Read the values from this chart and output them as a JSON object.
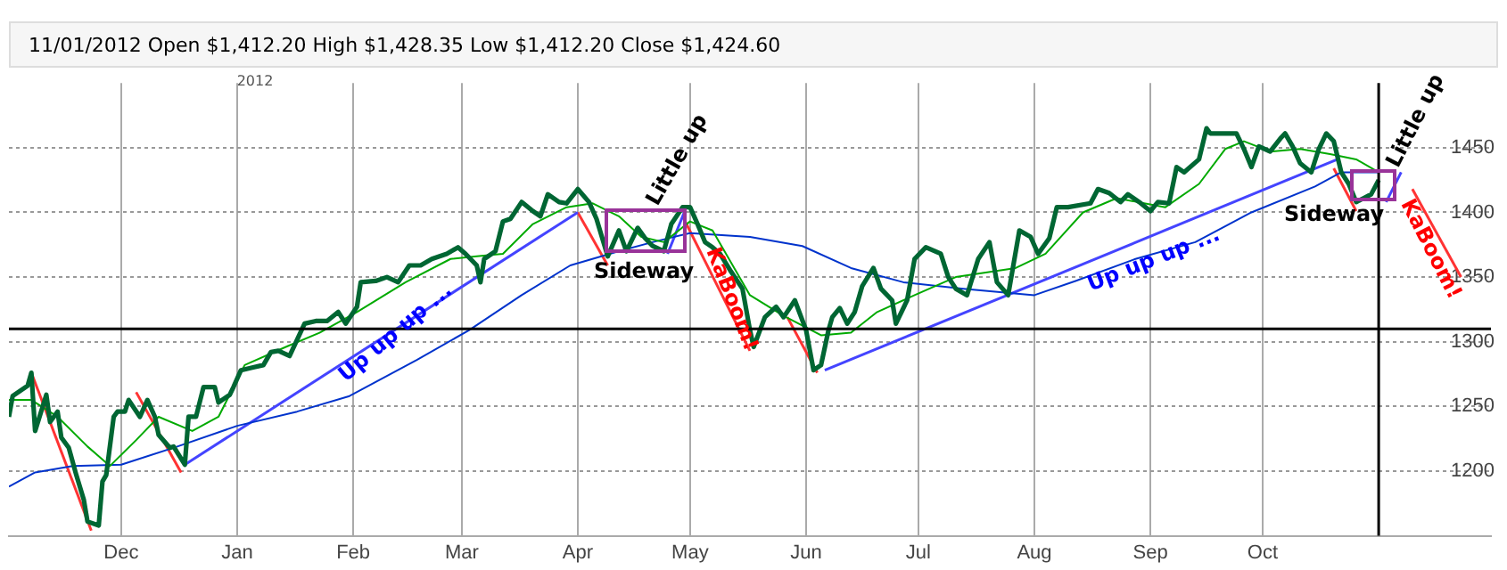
{
  "chart_data": {
    "type": "line",
    "title": "11/01/2012  Open $1,412.20  High $1,428.35  Low $1,412.20  Close $1,424.60",
    "xlim": [
      "2011-11-01",
      "2012-12-01"
    ],
    "xticks": [
      {
        "value": "2011-12-01",
        "label": "Dec"
      },
      {
        "value": "2012-01-01",
        "label": "Jan"
      },
      {
        "value": "2012-02-01",
        "label": "Feb"
      },
      {
        "value": "2012-03-01",
        "label": "Mar"
      },
      {
        "value": "2012-04-01",
        "label": "Apr"
      },
      {
        "value": "2012-05-01",
        "label": "May"
      },
      {
        "value": "2012-06-01",
        "label": "Jun"
      },
      {
        "value": "2012-07-01",
        "label": "Jul"
      },
      {
        "value": "2012-08-01",
        "label": "Aug"
      },
      {
        "value": "2012-09-01",
        "label": "Sep"
      },
      {
        "value": "2012-10-01",
        "label": "Oct"
      }
    ],
    "ylim": [
      1150,
      1500
    ],
    "yticks": [
      1200,
      1250,
      1300,
      1350,
      1400,
      1450
    ],
    "grid": true,
    "legend": false,
    "marker": "none",
    "series": [
      {
        "color": "#006633",
        "x": [
          "2011-11-01",
          "2011-11-02",
          "2011-11-06",
          "2011-11-07",
          "2011-11-08",
          "2011-11-11",
          "2011-11-12",
          "2011-11-14",
          "2011-11-15",
          "2011-11-17",
          "2011-11-19",
          "2011-11-21",
          "2011-11-22",
          "2011-11-25",
          "2011-11-26",
          "2011-11-27",
          "2011-11-29",
          "2011-11-30",
          "2011-12-02",
          "2011-12-03",
          "2011-12-06",
          "2011-12-08",
          "2011-12-10",
          "2011-12-11",
          "2011-12-14",
          "2011-12-15",
          "2011-12-18",
          "2011-12-19",
          "2011-12-21",
          "2011-12-23",
          "2011-12-26",
          "2011-12-27",
          "2011-12-30",
          "2011-12-31",
          "2012-01-02",
          "2012-01-05",
          "2012-01-08",
          "2012-01-10",
          "2012-01-12",
          "2012-01-15",
          "2012-01-19",
          "2012-01-22",
          "2012-01-25",
          "2012-01-28",
          "2012-01-30",
          "2012-02-02",
          "2012-02-03",
          "2012-02-07",
          "2012-02-10",
          "2012-02-13",
          "2012-02-16",
          "2012-02-19",
          "2012-02-22",
          "2012-02-26",
          "2012-02-29",
          "2012-03-02",
          "2012-03-05",
          "2012-03-06",
          "2012-03-07",
          "2012-03-10",
          "2012-03-12",
          "2012-03-14",
          "2012-03-17",
          "2012-03-20",
          "2012-03-22",
          "2012-03-24",
          "2012-03-27",
          "2012-03-29",
          "2012-04-01",
          "2012-04-04",
          "2012-04-06",
          "2012-04-09",
          "2012-04-12",
          "2012-04-14",
          "2012-04-17",
          "2012-04-19",
          "2012-04-21",
          "2012-04-24",
          "2012-04-26",
          "2012-04-29",
          "2012-05-01",
          "2012-05-03",
          "2012-05-05",
          "2012-05-07",
          "2012-05-09",
          "2012-05-12",
          "2012-05-15",
          "2012-05-17",
          "2012-05-18",
          "2012-05-21",
          "2012-05-24",
          "2012-05-26",
          "2012-05-29",
          "2012-06-01",
          "2012-06-03",
          "2012-06-05",
          "2012-06-07",
          "2012-06-08",
          "2012-06-10",
          "2012-06-12",
          "2012-06-14",
          "2012-06-16",
          "2012-06-19",
          "2012-06-21",
          "2012-06-24",
          "2012-06-25",
          "2012-06-28",
          "2012-06-30",
          "2012-07-03",
          "2012-07-07",
          "2012-07-09",
          "2012-07-11",
          "2012-07-14",
          "2012-07-17",
          "2012-07-20",
          "2012-07-22",
          "2012-07-25",
          "2012-07-28",
          "2012-07-31",
          "2012-08-02",
          "2012-08-05",
          "2012-08-07",
          "2012-08-10",
          "2012-08-16",
          "2012-08-18",
          "2012-08-21",
          "2012-08-24",
          "2012-08-26",
          "2012-08-29",
          "2012-09-01",
          "2012-09-03",
          "2012-09-06",
          "2012-09-08",
          "2012-09-10",
          "2012-09-14",
          "2012-09-16",
          "2012-09-17",
          "2012-09-21",
          "2012-09-24",
          "2012-09-26",
          "2012-09-28",
          "2012-09-30",
          "2012-10-03",
          "2012-10-06",
          "2012-10-07",
          "2012-10-09",
          "2012-10-11",
          "2012-10-14",
          "2012-10-16",
          "2012-10-18",
          "2012-10-20",
          "2012-10-22",
          "2012-10-24",
          "2012-10-26",
          "2012-10-28",
          "2012-10-30",
          "2012-11-01"
        ],
        "values": [
          1242,
          1258,
          1266,
          1276,
          1231,
          1259,
          1238,
          1246,
          1226,
          1218,
          1197,
          1178,
          1161,
          1158,
          1192,
          1197,
          1242,
          1246,
          1246,
          1255,
          1242,
          1255,
          1242,
          1228,
          1218,
          1219,
          1205,
          1242,
          1242,
          1265,
          1265,
          1253,
          1259,
          1265,
          1278,
          1280,
          1282,
          1292,
          1293,
          1289,
          1314,
          1316,
          1316,
          1323,
          1314,
          1327,
          1346,
          1347,
          1350,
          1346,
          1359,
          1359,
          1364,
          1368,
          1373,
          1368,
          1359,
          1346,
          1364,
          1370,
          1393,
          1395,
          1408,
          1401,
          1397,
          1414,
          1408,
          1407,
          1418,
          1408,
          1395,
          1366,
          1386,
          1370,
          1388,
          1380,
          1374,
          1370,
          1391,
          1404,
          1404,
          1391,
          1377,
          1373,
          1368,
          1354,
          1341,
          1309,
          1296,
          1319,
          1327,
          1319,
          1332,
          1309,
          1278,
          1282,
          1309,
          1319,
          1326,
          1314,
          1323,
          1343,
          1357,
          1341,
          1332,
          1314,
          1332,
          1364,
          1373,
          1368,
          1350,
          1341,
          1336,
          1364,
          1377,
          1346,
          1336,
          1386,
          1381,
          1368,
          1380,
          1404,
          1404,
          1407,
          1418,
          1415,
          1408,
          1414,
          1408,
          1401,
          1408,
          1407,
          1435,
          1431,
          1441,
          1465,
          1461,
          1461,
          1461,
          1449,
          1435,
          1451,
          1447,
          1458,
          1461,
          1451,
          1438,
          1431,
          1449,
          1461,
          1455,
          1431,
          1422,
          1408,
          1411,
          1414,
          1425
        ]
      },
      {
        "color": "#00aa00",
        "x": [
          "2011-11-01",
          "2011-11-07",
          "2011-11-14",
          "2011-11-22",
          "2011-11-28",
          "2011-12-05",
          "2011-12-11",
          "2011-12-20",
          "2011-12-27",
          "2012-01-03",
          "2012-01-14",
          "2012-01-23",
          "2012-02-02",
          "2012-02-15",
          "2012-02-27",
          "2012-03-05",
          "2012-03-12",
          "2012-03-20",
          "2012-03-29",
          "2012-04-05",
          "2012-04-12",
          "2012-04-18",
          "2012-04-24",
          "2012-05-01",
          "2012-05-07",
          "2012-05-17",
          "2012-05-26",
          "2012-06-05",
          "2012-06-13",
          "2012-06-20",
          "2012-06-30",
          "2012-07-11",
          "2012-07-27",
          "2012-08-04",
          "2012-08-14",
          "2012-08-23",
          "2012-09-05",
          "2012-09-14",
          "2012-09-21",
          "2012-09-26",
          "2012-10-03",
          "2012-10-11",
          "2012-10-19",
          "2012-10-26",
          "2012-11-01"
        ],
        "values": [
          1255,
          1255,
          1242,
          1219,
          1204,
          1224,
          1242,
          1231,
          1242,
          1282,
          1296,
          1307,
          1323,
          1346,
          1364,
          1366,
          1368,
          1391,
          1404,
          1407,
          1397,
          1381,
          1377,
          1393,
          1386,
          1336,
          1320,
          1305,
          1307,
          1323,
          1336,
          1350,
          1357,
          1368,
          1400,
          1411,
          1404,
          1422,
          1449,
          1455,
          1447,
          1449,
          1445,
          1441,
          1431
        ]
      },
      {
        "color": "#0033cc",
        "x": [
          "2011-11-01",
          "2011-11-08",
          "2011-11-18",
          "2011-12-01",
          "2011-12-16",
          "2012-01-01",
          "2012-01-17",
          "2012-01-31",
          "2012-02-18",
          "2012-03-03",
          "2012-03-17",
          "2012-03-30",
          "2012-04-12",
          "2012-04-21",
          "2012-05-01",
          "2012-05-17",
          "2012-05-31",
          "2012-06-13",
          "2012-06-27",
          "2012-07-13",
          "2012-08-01",
          "2012-08-12",
          "2012-08-28",
          "2012-09-13",
          "2012-09-28",
          "2012-10-15",
          "2012-10-22",
          "2012-11-01"
        ],
        "values": [
          1188,
          1199,
          1204,
          1205,
          1219,
          1235,
          1246,
          1258,
          1286,
          1309,
          1336,
          1359,
          1370,
          1377,
          1384,
          1381,
          1374,
          1357,
          1346,
          1341,
          1336,
          1347,
          1364,
          1377,
          1400,
          1420,
          1431,
          1431
        ]
      },
      {
        "color": "#ff3333",
        "x": [
          "2011-11-07",
          "2011-11-23"
        ],
        "values": [
          1276,
          1154
        ]
      },
      {
        "color": "#ff3333",
        "x": [
          "2011-12-05",
          "2011-12-17"
        ],
        "values": [
          1261,
          1199
        ]
      },
      {
        "color": "#4444ff",
        "x": [
          "2011-12-18",
          "2012-04-01"
        ],
        "values": [
          1205,
          1400
        ]
      },
      {
        "color": "#ff3333",
        "x": [
          "2012-04-01",
          "2012-04-09"
        ],
        "values": [
          1400,
          1359
        ]
      },
      {
        "color": "#4444ff",
        "x": [
          "2012-04-25",
          "2012-04-30"
        ],
        "values": [
          1368,
          1404
        ]
      },
      {
        "color": "#ff3333",
        "x": [
          "2012-04-29",
          "2012-05-17"
        ],
        "values": [
          1397,
          1293
        ]
      },
      {
        "color": "#ff3333",
        "x": [
          "2012-05-27",
          "2012-06-04"
        ],
        "values": [
          1319,
          1276
        ]
      },
      {
        "color": "#4444ff",
        "x": [
          "2012-06-06",
          "2012-10-21"
        ],
        "values": [
          1278,
          1441
        ]
      },
      {
        "color": "#ff3333",
        "x": [
          "2012-10-20",
          "2012-10-26"
        ],
        "values": [
          1434,
          1401
        ]
      },
      {
        "color": "#4444ff",
        "x": [
          "2012-11-03",
          "2012-11-07"
        ],
        "values": [
          1408,
          1431
        ]
      },
      {
        "color": "#ff3333",
        "x": [
          "2012-11-10",
          "2012-11-23"
        ],
        "values": [
          1418,
          1350
        ]
      }
    ],
    "ref_lines": [
      {
        "axis": "y",
        "value": 1310,
        "color": "#000000"
      },
      {
        "axis": "x",
        "value": "2012-11-01",
        "color": "#000000"
      }
    ],
    "annotations": [
      "2012",
      "Up up up ...",
      "Sideway",
      "Little up",
      "KaBoom!",
      "Up up up ...",
      "Sideway",
      "Little up",
      "KaBoom!"
    ]
  }
}
